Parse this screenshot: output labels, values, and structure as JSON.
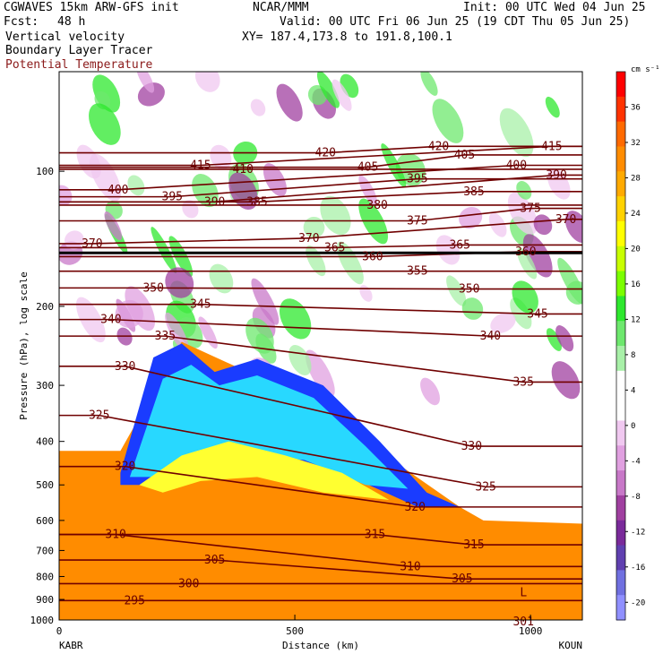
{
  "header": {
    "model": "CGWAVES 15km ARW-GFS init",
    "org": "NCAR/MMM",
    "init": "Init: 00 UTC Wed 04 Jun 25",
    "fcst_label": "Fcst:",
    "fcst_value": "48 h",
    "valid": "Valid: 00 UTC Fri 06 Jun 25 (19 CDT Thu 05 Jun 25)",
    "fields": [
      "Vertical velocity",
      "Boundary Layer Tracer"
    ],
    "field_theta": "Potential Temperature",
    "xy": "XY= 187.4,173.8 to 191.8,100.1"
  },
  "colors": {
    "theta_contour": "#700000",
    "tracer_fill": "#ff8c00"
  },
  "chart_data": {
    "type": "heatmap",
    "xlabel": "Distance (km)",
    "ylabel": "Pressure (hPa), log scale",
    "xlim": [
      0,
      1110
    ],
    "x_ticks": [
      0,
      500,
      1000
    ],
    "x_tick_labels": [
      "0",
      "500",
      "1000"
    ],
    "ylim": [
      1000,
      60
    ],
    "y_scale": "log",
    "y_ticks": [
      100,
      200,
      300,
      400,
      500,
      600,
      700,
      800,
      900,
      1000
    ],
    "y_tick_labels": [
      "100",
      "200",
      "300",
      "400",
      "500",
      "600",
      "700",
      "800",
      "900",
      "1000"
    ],
    "x_endpoints": [
      "KABR",
      "KOUN"
    ],
    "colorbar": {
      "units": "cm s⁻¹",
      "tick_values": [
        36,
        32,
        28,
        24,
        20,
        16,
        12,
        8,
        4,
        0,
        -4,
        -8,
        -12,
        -16,
        -20
      ],
      "colors": [
        "#ff0000",
        "#ff3300",
        "#ff6a00",
        "#ff8c00",
        "#ffaa00",
        "#ffd200",
        "#ffff00",
        "#c8ff00",
        "#7bff00",
        "#2ee82e",
        "#6ee86e",
        "#a8f0a8",
        "#ffffff",
        "#ffffff",
        "#f0c8f0",
        "#e0a0e0",
        "#c878c8",
        "#a040a0",
        "#7a2a9a",
        "#6040b0",
        "#7070e0",
        "#9090ff"
      ]
    },
    "theta_contours": [
      {
        "value": 295,
        "label_km": 160,
        "p": 905
      },
      {
        "value": 300,
        "label_km": 275,
        "p": 830
      },
      {
        "value": 305,
        "label_km": 330,
        "p": 735
      },
      {
        "value": 305,
        "label_km": 855,
        "p": 810
      },
      {
        "value": 310,
        "label_km": 120,
        "p": 645
      },
      {
        "value": 310,
        "label_km": 745,
        "p": 760
      },
      {
        "value": 315,
        "label_km": 670,
        "p": 645
      },
      {
        "value": 315,
        "label_km": 880,
        "p": 680
      },
      {
        "value": 320,
        "label_km": 140,
        "p": 455
      },
      {
        "value": 320,
        "label_km": 755,
        "p": 560
      },
      {
        "value": 325,
        "label_km": 85,
        "p": 350
      },
      {
        "value": 325,
        "label_km": 905,
        "p": 505
      },
      {
        "value": 330,
        "label_km": 140,
        "p": 272
      },
      {
        "value": 330,
        "label_km": 875,
        "p": 410
      },
      {
        "value": 335,
        "label_km": 225,
        "p": 233
      },
      {
        "value": 335,
        "label_km": 985,
        "p": 295
      },
      {
        "value": 340,
        "label_km": 110,
        "p": 214
      },
      {
        "value": 340,
        "label_km": 915,
        "p": 233
      },
      {
        "value": 345,
        "label_km": 300,
        "p": 198
      },
      {
        "value": 345,
        "label_km": 1015,
        "p": 208
      },
      {
        "value": 350,
        "label_km": 200,
        "p": 182
      },
      {
        "value": 350,
        "label_km": 870,
        "p": 183
      },
      {
        "value": 355,
        "label_km": 760,
        "p": 167
      },
      {
        "value": 360,
        "label_km": 665,
        "p": 155
      },
      {
        "value": 360,
        "label_km": 990,
        "p": 151
      },
      {
        "value": 365,
        "label_km": 585,
        "p": 148
      },
      {
        "value": 365,
        "label_km": 850,
        "p": 146
      },
      {
        "value": 370,
        "label_km": 70,
        "p": 145
      },
      {
        "value": 370,
        "label_km": 530,
        "p": 141
      },
      {
        "value": 370,
        "label_km": 1075,
        "p": 128
      },
      {
        "value": 375,
        "label_km": 760,
        "p": 129
      },
      {
        "value": 375,
        "label_km": 1000,
        "p": 121
      },
      {
        "value": 380,
        "label_km": 675,
        "p": 119
      },
      {
        "value": 385,
        "label_km": 420,
        "p": 117
      },
      {
        "value": 385,
        "label_km": 880,
        "p": 111
      },
      {
        "value": 390,
        "label_km": 330,
        "p": 117
      },
      {
        "value": 390,
        "label_km": 1055,
        "p": 102
      },
      {
        "value": 395,
        "label_km": 240,
        "p": 114
      },
      {
        "value": 395,
        "label_km": 760,
        "p": 104
      },
      {
        "value": 400,
        "label_km": 125,
        "p": 110
      },
      {
        "value": 400,
        "label_km": 970,
        "p": 97
      },
      {
        "value": 405,
        "label_km": 655,
        "p": 98
      },
      {
        "value": 405,
        "label_km": 860,
        "p": 92
      },
      {
        "value": 410,
        "label_km": 390,
        "p": 99
      },
      {
        "value": 415,
        "label_km": 300,
        "p": 97
      },
      {
        "value": 415,
        "label_km": 1045,
        "p": 88
      },
      {
        "value": 420,
        "label_km": 565,
        "p": 91
      },
      {
        "value": 420,
        "label_km": 805,
        "p": 88
      }
    ],
    "tropopause_p": 152,
    "low_marker": {
      "text": "L",
      "x_km": 985,
      "p": 870
    },
    "bottom_label": {
      "text": "301",
      "x_km": 985,
      "p": 1000
    },
    "boundary_layer_tracer": {
      "top_p_at_x": [
        [
          0,
          420
        ],
        [
          130,
          420
        ],
        [
          260,
          240
        ],
        [
          400,
          280
        ],
        [
          560,
          310
        ],
        [
          720,
          450
        ],
        [
          850,
          560
        ],
        [
          900,
          600
        ],
        [
          1110,
          610
        ]
      ]
    },
    "vertical_velocity_bands_aloft": "alternating up/down bands, approx +/-8 cm/s"
  }
}
